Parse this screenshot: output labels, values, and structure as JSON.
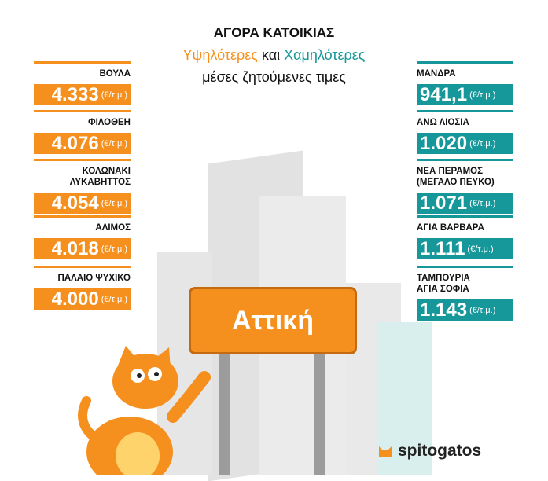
{
  "title": {
    "line1": "ΑΓΟΡΑ ΚΑΤΟΙΚΙΑΣ",
    "highest": "Υψηλότερες",
    "and": "και",
    "lowest": "Χαμηλότερες",
    "line3": "μέσες ζητούμενες τιμες"
  },
  "unit": "(€/τ.μ.)",
  "highest": [
    {
      "area": "ΒΟΥΛΑ",
      "price": "4.333"
    },
    {
      "area": "ΦΙΛΟΘΕΗ",
      "price": "4.076"
    },
    {
      "area": "ΚΟΛΩΝΑΚΙ ΛΥΚΑΒΗΤΤΟΣ",
      "price": "4.054"
    },
    {
      "area": "ΑΛΙΜΟΣ",
      "price": "4.018"
    },
    {
      "area": "ΠΑΛΑΙΟ ΨΥΧΙΚΟ",
      "price": "4.000"
    }
  ],
  "lowest": [
    {
      "area": "ΜΑΝΔΡΑ",
      "price": "941,1"
    },
    {
      "area": "ΑΝΩ ΛΙΟΣΙΑ",
      "price": "1.020"
    },
    {
      "area": "ΝΕΑ ΠΕΡΑΜΟΣ (ΜΕΓΑΛΟ ΠΕΥΚΟ)",
      "price": "1.071"
    },
    {
      "area": "ΑΓΙΑ ΒΑΡΒΑΡΑ",
      "price": "1.111"
    },
    {
      "area": "ΤΑΜΠΟΥΡΙΑ ΑΓΙΑ ΣΟΦΙΑ",
      "price": "1.143"
    }
  ],
  "sign": "Αττική",
  "logo": "spitogatos",
  "colors": {
    "orange": "#f5901e",
    "teal": "#16979a"
  }
}
